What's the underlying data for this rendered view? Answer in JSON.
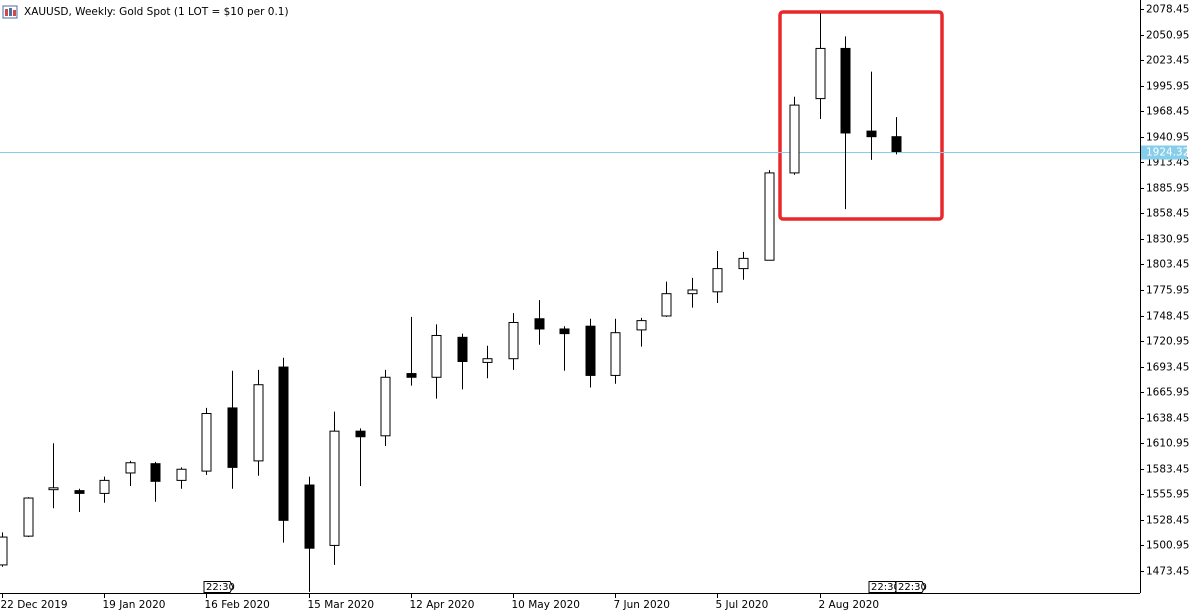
{
  "chart_data": {
    "type": "candlestick",
    "title": "XAUUSD, Weekly:  Gold Spot (1 LOT = $10 per 0.1)",
    "categories": [
      "22 Dec 2019",
      null,
      null,
      null,
      "19 Jan 2020",
      null,
      null,
      null,
      "16 Feb 2020",
      null,
      null,
      null,
      "15 Mar 2020",
      null,
      null,
      null,
      "12 Apr 2020",
      null,
      null,
      null,
      "10 May 2020",
      null,
      null,
      null,
      "7 Jun 2020",
      null,
      null,
      null,
      "5 Jul 2020",
      null,
      null,
      null,
      "2 Aug 2020",
      null,
      null,
      null
    ],
    "open": [
      1480,
      1511,
      1561,
      1560,
      1557,
      1579,
      1589,
      1571,
      1581,
      1649,
      1592,
      1693,
      1566,
      1501,
      1624,
      1619,
      1686,
      1682,
      1725,
      1698,
      1702,
      1745,
      1734,
      1737,
      1684,
      1733,
      1748,
      1772,
      1774,
      1799,
      1808,
      1902,
      1982,
      2036,
      1947,
      1941
    ],
    "high": [
      1515,
      1553,
      1611,
      1562,
      1575,
      1592,
      1591,
      1585,
      1649,
      1689,
      1690,
      1703,
      1575,
      1645,
      1627,
      1690,
      1747,
      1739,
      1729,
      1716,
      1751,
      1765,
      1737,
      1745,
      1745,
      1746,
      1785,
      1789,
      1818,
      1817,
      1905,
      1984,
      2074,
      2049,
      2011,
      1962
    ],
    "low": [
      1478,
      1510,
      1541,
      1537,
      1547,
      1565,
      1548,
      1562,
      1577,
      1562,
      1576,
      1504,
      1451,
      1480,
      1565,
      1608,
      1673,
      1659,
      1669,
      1681,
      1690,
      1717,
      1689,
      1671,
      1675,
      1715,
      1747,
      1757,
      1762,
      1787,
      1808,
      1900,
      1960,
      1863,
      1916,
      1922
    ],
    "close": [
      1510,
      1552,
      1563,
      1557,
      1571,
      1590,
      1570,
      1583,
      1643,
      1585,
      1674,
      1528,
      1498,
      1624,
      1618,
      1682,
      1682,
      1727,
      1699,
      1702,
      1741,
      1734,
      1729,
      1684,
      1730,
      1743,
      1772,
      1776,
      1799,
      1810,
      1902,
      1975,
      2036,
      1945,
      1941,
      1925
    ],
    "up_color": "#ffffff",
    "down_color": "#000000",
    "outline_color": "#000000",
    "current_price": 1924.32,
    "current_price_color": "#87ceeb",
    "time_markers": [
      "22:30",
      "22:30",
      "22:30"
    ],
    "ylim": [
      1449.78,
      2088.14
    ],
    "yticks": [
      1473.45,
      1500.95,
      1528.45,
      1555.95,
      1583.45,
      1610.95,
      1638.45,
      1665.95,
      1693.45,
      1720.95,
      1748.45,
      1775.95,
      1803.45,
      1830.95,
      1858.45,
      1885.95,
      1913.45,
      1940.95,
      1968.45,
      1995.95,
      2023.45,
      2050.95,
      2078.45
    ]
  }
}
